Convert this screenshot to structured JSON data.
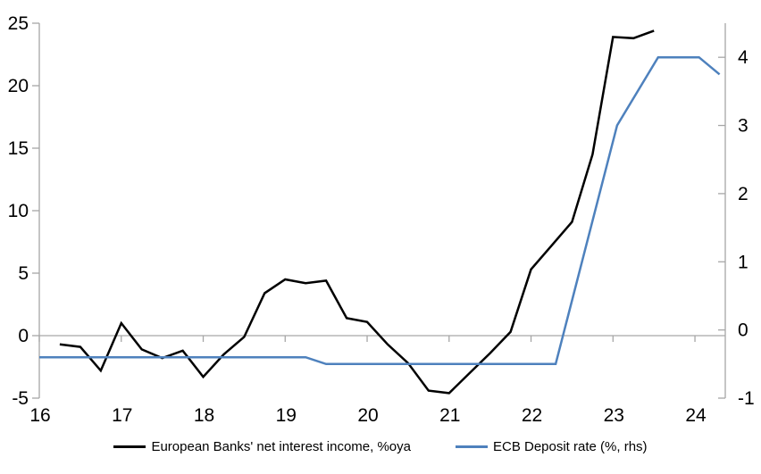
{
  "chart_data": {
    "type": "line",
    "title": "",
    "xlabel": "",
    "ylabel_left": "",
    "ylabel_right": "",
    "grid": false,
    "zero_line": true,
    "legend_position": "bottom",
    "x_axis": {
      "tick_values": [
        16,
        17,
        18,
        19,
        20,
        21,
        22,
        23,
        24
      ],
      "tick_labels": [
        "16",
        "17",
        "18",
        "19",
        "20",
        "21",
        "22",
        "23",
        "24"
      ],
      "range": [
        16,
        24.37
      ]
    },
    "left_y_axis": {
      "tick_values": [
        -5,
        0,
        5,
        10,
        15,
        20,
        25
      ],
      "tick_labels": [
        "-5",
        "0",
        "5",
        "10",
        "15",
        "20",
        "25"
      ],
      "range": [
        -5,
        25
      ]
    },
    "right_y_axis": {
      "tick_values": [
        -1,
        0,
        1,
        2,
        3,
        4
      ],
      "tick_labels": [
        "-1",
        "0",
        "1",
        "2",
        "3",
        "4"
      ],
      "range": [
        -1,
        4.5
      ]
    },
    "series": [
      {
        "key": "european-banks-nii",
        "name": "European Banks' net interest income, %oya",
        "axis": "left",
        "color": "#000000",
        "x": [
          16.25,
          16.5,
          16.75,
          17.0,
          17.25,
          17.5,
          17.75,
          18.0,
          18.25,
          18.5,
          18.75,
          19.0,
          19.25,
          19.5,
          19.75,
          20.0,
          20.25,
          20.5,
          20.75,
          21.0,
          21.25,
          21.5,
          21.75,
          22.0,
          22.25,
          22.5,
          22.75,
          23.0,
          23.25,
          23.5
        ],
        "values": [
          -0.7,
          -0.9,
          -2.8,
          1.0,
          -1.1,
          -1.8,
          -1.2,
          -3.3,
          -1.5,
          -0.1,
          3.4,
          4.5,
          4.2,
          4.4,
          1.4,
          1.1,
          -0.7,
          -2.2,
          -4.4,
          -4.6,
          -3.0,
          -1.4,
          0.3,
          5.3,
          7.2,
          9.1,
          14.5,
          23.9,
          23.8,
          24.4
        ]
      },
      {
        "key": "ecb-deposit-rate",
        "name": "ECB Deposit rate (%, rhs)",
        "axis": "right",
        "color": "#4E81BD",
        "x": [
          16.0,
          19.25,
          19.5,
          22.3,
          23.05,
          23.55,
          24.05,
          24.3
        ],
        "values": [
          -0.4,
          -0.4,
          -0.5,
          -0.5,
          3.0,
          4.0,
          4.0,
          3.75
        ]
      }
    ]
  },
  "colors": {
    "axis": "#A6A6A6",
    "background": "#FFFFFF",
    "text": "#000000"
  }
}
